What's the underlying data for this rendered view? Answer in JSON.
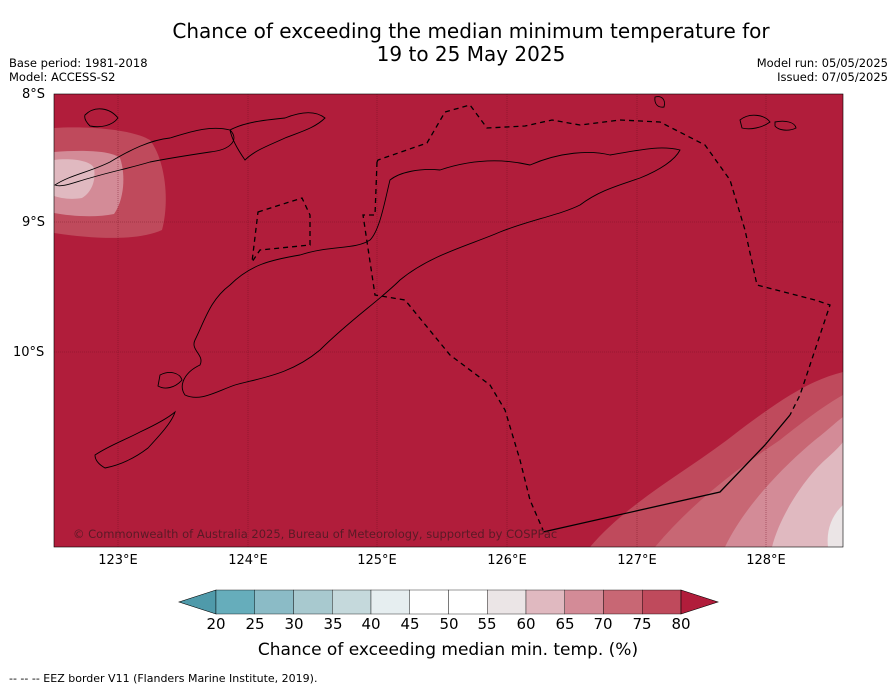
{
  "title_line1": "Chance of exceeding the median minimum temperature for",
  "title_line2": "19 to 25 May 2025",
  "base_period": "Base period: 1981-2018",
  "model": "Model: ACCESS-S2",
  "model_run": "Model run: 05/05/2025",
  "issued": "Issued: 07/05/2025",
  "lat_labels": [
    "8°S",
    "9°S",
    "10°S"
  ],
  "lon_labels": [
    "123°E",
    "124°E",
    "125°E",
    "126°E",
    "127°E",
    "128°E"
  ],
  "copyright": "© Commonwealth of Australia 2025, Bureau of Meteorology, supported by COSPPac",
  "colorbar": {
    "ticks": [
      "20",
      "25",
      "30",
      "35",
      "40",
      "45",
      "50",
      "55",
      "60",
      "65",
      "70",
      "75",
      "80"
    ],
    "colors": [
      "#66adbb",
      "#8bbbc6",
      "#a8c9cf",
      "#c5d9dc",
      "#e6eef0",
      "#ffffff",
      "#ffffff",
      "#ebe5e6",
      "#e0b9c0",
      "#d38b97",
      "#c86774",
      "#bf4a5c"
    ],
    "under_color": "#4f9aaa",
    "over_color": "#b11d3b",
    "label": "Chance of exceeding median min. temp. (%)"
  },
  "footer": "--  --  -- EEZ border V11 (Flanders Marine Institute, 2019)."
}
